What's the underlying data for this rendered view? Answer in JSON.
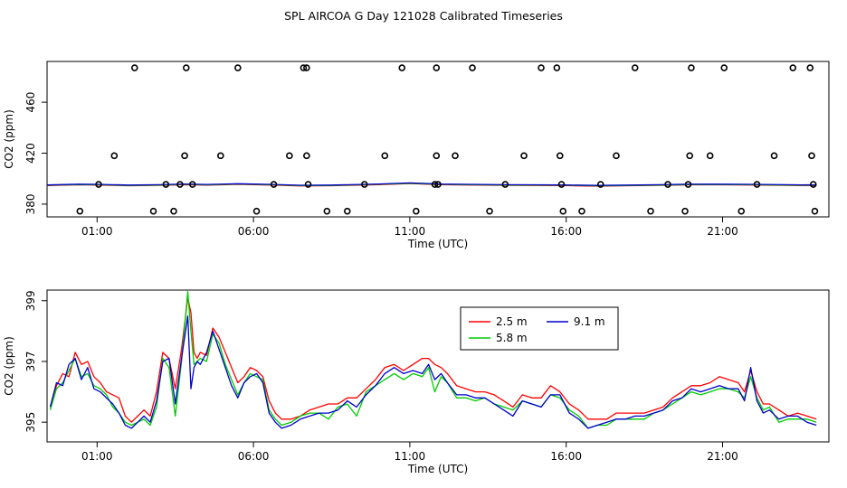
{
  "title": "SPL AIRCOA G  Day 121028  Calibrated Timeseries",
  "colors": {
    "s1": "#ff0000",
    "s2": "#00cc00",
    "s3": "#0000cc",
    "axis": "#000000"
  },
  "chart_data": [
    {
      "type": "scatter",
      "xlabel": "Time (UTC)",
      "ylabel": "CO2 (ppm)",
      "xlim": [
        -0.6,
        24.4
      ],
      "ylim": [
        370,
        492
      ],
      "xticks": [
        1,
        6,
        11,
        16,
        21
      ],
      "xtick_labels": [
        "01:00",
        "06:00",
        "11:00",
        "16:00",
        "21:00"
      ],
      "yticks": [
        380,
        420,
        460
      ],
      "ytick_labels": [
        "380",
        "420",
        "460"
      ],
      "points": {
        "x": [
          0.45,
          1.05,
          1.55,
          2.2,
          2.8,
          3.2,
          3.45,
          3.65,
          3.8,
          3.85,
          4.05,
          4.95,
          5.5,
          6.1,
          6.65,
          7.15,
          7.6,
          7.7,
          7.7,
          7.75,
          8.35,
          9.0,
          9.55,
          10.2,
          10.75,
          11.2,
          11.8,
          11.85,
          11.85,
          11.9,
          12.45,
          13.0,
          13.55,
          14.05,
          14.65,
          15.2,
          15.7,
          15.8,
          15.85,
          15.9,
          16.5,
          17.1,
          17.6,
          18.2,
          18.7,
          19.25,
          19.8,
          19.9,
          19.95,
          20.0,
          20.6,
          21.05,
          21.6,
          22.1,
          22.65,
          23.25,
          23.8,
          23.85,
          23.9,
          23.95
        ],
        "y": [
          374.5,
          395.5,
          418,
          487,
          374.5,
          395.5,
          374.5,
          395.5,
          418,
          487,
          395.5,
          418,
          487,
          374.5,
          395.5,
          418,
          487,
          487,
          418,
          395.5,
          374.5,
          374.5,
          395.5,
          418,
          487,
          374.5,
          395.5,
          418,
          487,
          395.5,
          418,
          487,
          374.5,
          395.5,
          418,
          487,
          487,
          418,
          395.5,
          374.5,
          374.5,
          395.5,
          418,
          487,
          374.5,
          395.5,
          374.5,
          395.5,
          418,
          487,
          418,
          487,
          374.5,
          395.5,
          418,
          487,
          487,
          418,
          395.5,
          374.5
        ]
      },
      "lines": {
        "x": [
          -0.6,
          0.4,
          1.0,
          2.0,
          3.0,
          3.8,
          4.5,
          5.5,
          6.5,
          7.5,
          8.5,
          10,
          11,
          12,
          13,
          14,
          15,
          16,
          17,
          18,
          19,
          20,
          21,
          22,
          23,
          24
        ],
        "y": [
          394.8,
          395.4,
          395.3,
          394.7,
          395,
          395.6,
          395.2,
          395.8,
          395.3,
          394.6,
          394.7,
          395.6,
          396.4,
          395.5,
          395.3,
          395,
          394.9,
          394.8,
          394.4,
          394.7,
          395,
          395.4,
          395.4,
          395.3,
          395,
          394.8
        ]
      }
    },
    {
      "type": "line",
      "xlabel": "Time (UTC)",
      "ylabel": "CO2 (ppm)",
      "xlim": [
        -0.6,
        24.4
      ],
      "ylim": [
        394.35,
        399.35
      ],
      "xticks": [
        1,
        6,
        11,
        16,
        21
      ],
      "xtick_labels": [
        "01:00",
        "06:00",
        "11:00",
        "16:00",
        "21:00"
      ],
      "yticks": [
        395,
        397,
        399
      ],
      "ytick_labels": [
        "395",
        "397",
        "399"
      ],
      "legend": {
        "position": "top-right-inner",
        "columns": 2
      },
      "series": [
        {
          "name": "2.5 m",
          "x": [
            -0.5,
            -0.3,
            -0.1,
            0.1,
            0.3,
            0.5,
            0.7,
            0.9,
            1.1,
            1.3,
            1.5,
            1.7,
            1.9,
            2.1,
            2.3,
            2.5,
            2.7,
            2.9,
            3.1,
            3.3,
            3.5,
            3.7,
            3.9,
            4.0,
            4.1,
            4.2,
            4.3,
            4.5,
            4.7,
            4.9,
            5.1,
            5.3,
            5.5,
            5.7,
            5.9,
            6.1,
            6.3,
            6.5,
            6.7,
            6.9,
            7.2,
            7.5,
            7.8,
            8.1,
            8.4,
            8.7,
            9.0,
            9.3,
            9.6,
            9.9,
            10.2,
            10.5,
            10.8,
            11.1,
            11.4,
            11.6,
            11.8,
            12.0,
            12.2,
            12.5,
            12.8,
            13.1,
            13.4,
            13.7,
            14.0,
            14.3,
            14.6,
            14.9,
            15.2,
            15.5,
            15.8,
            16.1,
            16.4,
            16.7,
            17.0,
            17.3,
            17.6,
            17.9,
            18.2,
            18.5,
            18.8,
            19.1,
            19.4,
            19.7,
            20.0,
            20.3,
            20.6,
            20.9,
            21.2,
            21.5,
            21.7,
            21.9,
            22.1,
            22.3,
            22.5,
            22.8,
            23.1,
            23.4,
            23.7,
            24.0
          ],
          "y": [
            395.5,
            396.2,
            396.6,
            396.5,
            397.3,
            396.9,
            397.0,
            396.5,
            396.3,
            396.0,
            395.9,
            395.8,
            395.2,
            395.0,
            395.2,
            395.4,
            395.2,
            396.0,
            397.3,
            397.1,
            396.1,
            397.4,
            399.1,
            398.6,
            397.3,
            397.1,
            397.3,
            397.2,
            398.1,
            397.8,
            397.3,
            396.8,
            396.3,
            396.5,
            396.8,
            396.7,
            396.5,
            395.7,
            395.3,
            395.1,
            395.1,
            395.2,
            395.4,
            395.5,
            395.6,
            395.6,
            395.8,
            395.8,
            396.1,
            396.4,
            396.8,
            396.9,
            396.7,
            396.9,
            397.1,
            397.1,
            396.9,
            396.8,
            396.6,
            396.2,
            396.1,
            396.0,
            396.0,
            395.9,
            395.7,
            395.5,
            395.9,
            395.8,
            395.8,
            396.2,
            396.0,
            395.6,
            395.4,
            395.1,
            395.1,
            395.1,
            395.3,
            395.3,
            395.3,
            395.3,
            395.4,
            395.5,
            395.8,
            396.0,
            396.2,
            396.2,
            396.3,
            396.5,
            396.4,
            396.3,
            396.0,
            396.7,
            396.0,
            395.6,
            395.6,
            395.4,
            395.2,
            395.3,
            395.2,
            395.1
          ]
        },
        {
          "name": "5.8 m",
          "x": [
            -0.5,
            -0.3,
            -0.1,
            0.1,
            0.3,
            0.5,
            0.7,
            0.9,
            1.1,
            1.3,
            1.5,
            1.7,
            1.9,
            2.1,
            2.3,
            2.5,
            2.7,
            2.9,
            3.1,
            3.3,
            3.5,
            3.7,
            3.9,
            4.0,
            4.1,
            4.2,
            4.3,
            4.5,
            4.7,
            4.9,
            5.1,
            5.3,
            5.5,
            5.7,
            5.9,
            6.1,
            6.3,
            6.5,
            6.7,
            6.9,
            7.2,
            7.5,
            7.8,
            8.1,
            8.4,
            8.7,
            9.0,
            9.3,
            9.6,
            9.9,
            10.2,
            10.5,
            10.8,
            11.1,
            11.4,
            11.6,
            11.8,
            12.0,
            12.2,
            12.5,
            12.8,
            13.1,
            13.4,
            13.7,
            14.0,
            14.3,
            14.6,
            14.9,
            15.2,
            15.5,
            15.8,
            16.1,
            16.4,
            16.7,
            17.0,
            17.3,
            17.6,
            17.9,
            18.2,
            18.5,
            18.8,
            19.1,
            19.4,
            19.7,
            20.0,
            20.3,
            20.6,
            20.9,
            21.2,
            21.5,
            21.7,
            21.9,
            22.1,
            22.3,
            22.5,
            22.8,
            23.1,
            23.4,
            23.7,
            24.0
          ],
          "y": [
            395.4,
            396.1,
            396.3,
            396.7,
            397.1,
            396.5,
            396.6,
            396.2,
            396.1,
            395.9,
            395.5,
            395.3,
            395.0,
            394.9,
            395.0,
            395.1,
            394.9,
            395.5,
            397.1,
            396.8,
            395.2,
            397.0,
            399.3,
            398.0,
            396.9,
            397.0,
            397.1,
            397.0,
            397.9,
            397.6,
            396.9,
            396.4,
            395.9,
            396.3,
            396.6,
            396.5,
            396.4,
            395.4,
            395.1,
            394.9,
            395.0,
            395.2,
            395.3,
            395.3,
            395.1,
            395.5,
            395.6,
            395.2,
            396.0,
            396.2,
            396.4,
            396.6,
            396.4,
            396.6,
            396.5,
            396.8,
            396.0,
            396.5,
            396.3,
            395.8,
            395.8,
            395.7,
            395.8,
            395.6,
            395.5,
            395.4,
            395.7,
            395.6,
            395.5,
            395.9,
            395.8,
            395.4,
            395.2,
            394.8,
            394.9,
            394.9,
            395.1,
            395.1,
            395.1,
            395.1,
            395.3,
            395.4,
            395.6,
            395.8,
            396.0,
            395.9,
            396.0,
            396.1,
            396.1,
            396.0,
            395.8,
            396.5,
            395.8,
            395.4,
            395.5,
            395.0,
            395.1,
            395.1,
            395.1,
            395.0
          ]
        },
        {
          "name": "9.1 m",
          "x": [
            -0.5,
            -0.3,
            -0.1,
            0.1,
            0.3,
            0.5,
            0.7,
            0.9,
            1.1,
            1.3,
            1.5,
            1.7,
            1.9,
            2.1,
            2.3,
            2.5,
            2.7,
            2.9,
            3.1,
            3.3,
            3.5,
            3.7,
            3.9,
            4.0,
            4.1,
            4.2,
            4.3,
            4.5,
            4.7,
            4.9,
            5.1,
            5.3,
            5.5,
            5.7,
            5.9,
            6.1,
            6.3,
            6.5,
            6.7,
            6.9,
            7.2,
            7.5,
            7.8,
            8.1,
            8.4,
            8.7,
            9.0,
            9.3,
            9.6,
            9.9,
            10.2,
            10.5,
            10.8,
            11.1,
            11.4,
            11.6,
            11.8,
            12.0,
            12.2,
            12.5,
            12.8,
            13.1,
            13.4,
            13.7,
            14.0,
            14.3,
            14.6,
            14.9,
            15.2,
            15.5,
            15.8,
            16.1,
            16.4,
            16.7,
            17.0,
            17.3,
            17.6,
            17.9,
            18.2,
            18.5,
            18.8,
            19.1,
            19.4,
            19.7,
            20.0,
            20.3,
            20.6,
            20.9,
            21.2,
            21.5,
            21.7,
            21.9,
            22.1,
            22.3,
            22.5,
            22.8,
            23.1,
            23.4,
            23.7,
            24.0
          ],
          "y": [
            395.5,
            396.3,
            396.2,
            396.9,
            397.1,
            396.4,
            396.8,
            396.1,
            396.0,
            395.8,
            395.6,
            395.3,
            394.9,
            394.8,
            395.0,
            395.2,
            395.0,
            395.7,
            397.0,
            397.1,
            395.6,
            397.1,
            398.5,
            396.1,
            396.8,
            397.0,
            396.9,
            397.3,
            398.0,
            397.4,
            396.8,
            396.2,
            395.8,
            396.3,
            396.5,
            396.6,
            396.3,
            395.3,
            395.0,
            394.8,
            394.9,
            395.1,
            395.2,
            395.3,
            395.3,
            395.4,
            395.7,
            395.5,
            395.9,
            396.2,
            396.6,
            396.8,
            396.6,
            396.7,
            396.6,
            396.9,
            396.4,
            396.6,
            396.3,
            395.9,
            395.9,
            395.8,
            395.8,
            395.6,
            395.4,
            395.2,
            395.7,
            395.6,
            395.5,
            395.9,
            395.9,
            395.3,
            395.1,
            394.8,
            394.9,
            395.0,
            395.1,
            395.1,
            395.2,
            395.2,
            395.3,
            395.4,
            395.7,
            395.8,
            396.1,
            396.0,
            396.1,
            396.2,
            396.1,
            396.1,
            395.7,
            396.8,
            395.7,
            395.3,
            395.4,
            395.1,
            395.2,
            395.2,
            395.0,
            394.9
          ]
        }
      ]
    }
  ]
}
